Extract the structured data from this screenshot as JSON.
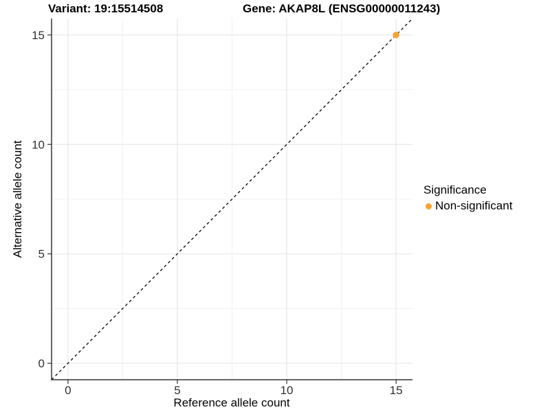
{
  "titles": {
    "variant": "Variant: 19:15514508",
    "gene": "Gene: AKAP8L (ENSG00000011243)"
  },
  "legend": {
    "title": "Significance",
    "items": [
      {
        "label": "Non-significant",
        "color": "#F9A232"
      }
    ]
  },
  "chart_data": {
    "type": "scatter",
    "title": "Variant: 19:15514508   Gene: AKAP8L (ENSG00000011243)",
    "xlabel": "Reference allele count",
    "ylabel": "Alternative allele count",
    "xlim": [
      -0.75,
      15.75
    ],
    "ylim": [
      -0.75,
      15.75
    ],
    "x_major_ticks": [
      0,
      5,
      10,
      15
    ],
    "y_major_ticks": [
      0,
      5,
      10,
      15
    ],
    "x_minor_ticks": [
      2.5,
      7.5,
      12.5
    ],
    "y_minor_ticks": [
      2.5,
      7.5,
      12.5
    ],
    "grid": "on",
    "legend_position": "right",
    "reference_line": {
      "kind": "identity",
      "from": [
        -0.75,
        -0.75
      ],
      "to": [
        15.75,
        15.75
      ],
      "style": "dashed",
      "color": "#000000"
    },
    "series": [
      {
        "name": "Non-significant",
        "color": "#F9A232",
        "points": [
          [
            15,
            15
          ]
        ]
      }
    ]
  },
  "colors": {
    "background": "#FFFFFF",
    "axis_line": "#333333",
    "tick_label": "#303030",
    "grid_major": "#E4E4E4",
    "grid_minor": "#F1F1F1"
  }
}
